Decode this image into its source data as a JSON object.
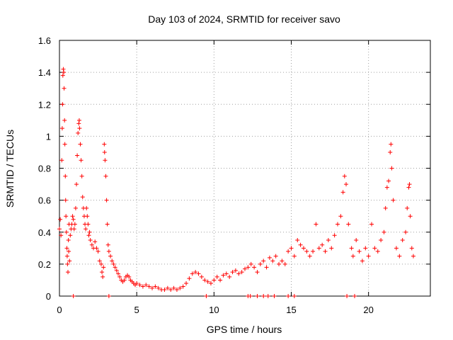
{
  "chart_data": {
    "type": "scatter",
    "title": "Day 103 of 2024, SRMTID for receiver savo",
    "xlabel": "GPS time / hours",
    "ylabel": "SRMTID / TECUs",
    "xlim": [
      0,
      24.0
    ],
    "ylim": [
      0,
      1.6
    ],
    "x_ticks": [
      0,
      5,
      10,
      15,
      20
    ],
    "y_ticks": [
      0,
      0.2,
      0.4,
      0.6,
      0.8,
      1.0,
      1.2,
      1.4,
      1.6
    ],
    "x_tick_labels": [
      "0",
      "5",
      "10",
      "15",
      "20"
    ],
    "y_tick_labels": [
      "0",
      "0.2",
      "0.4",
      "0.6",
      "0.8",
      "1",
      "1.2",
      "1.4",
      "1.6"
    ],
    "grid": true,
    "marker": "+",
    "color": "#ff0000",
    "series": [
      {
        "name": "SRMTID",
        "points": [
          [
            0.0,
            0.42
          ],
          [
            0.05,
            0.48
          ],
          [
            0.1,
            0.38
          ],
          [
            0.15,
            0.85
          ],
          [
            0.18,
            1.05
          ],
          [
            0.2,
            1.2
          ],
          [
            0.22,
            1.38
          ],
          [
            0.25,
            1.42
          ],
          [
            0.28,
            1.4
          ],
          [
            0.3,
            1.3
          ],
          [
            0.33,
            1.1
          ],
          [
            0.35,
            0.95
          ],
          [
            0.38,
            0.75
          ],
          [
            0.4,
            0.6
          ],
          [
            0.42,
            0.5
          ],
          [
            0.45,
            0.4
          ],
          [
            0.48,
            0.3
          ],
          [
            0.5,
            0.25
          ],
          [
            0.52,
            0.2
          ],
          [
            0.55,
            0.15
          ],
          [
            0.58,
            0.35
          ],
          [
            0.6,
            0.28
          ],
          [
            0.62,
            0.45
          ],
          [
            0.65,
            0.22
          ],
          [
            0.7,
            0.38
          ],
          [
            0.75,
            0.42
          ],
          [
            0.8,
            0.45
          ],
          [
            0.85,
            0.5
          ],
          [
            0.9,
            0.48
          ],
          [
            0.95,
            0.42
          ],
          [
            1.0,
            0.45
          ],
          [
            1.05,
            0.55
          ],
          [
            1.1,
            0.7
          ],
          [
            1.15,
            0.88
          ],
          [
            1.2,
            1.02
          ],
          [
            1.25,
            1.08
          ],
          [
            1.28,
            1.1
          ],
          [
            1.3,
            1.05
          ],
          [
            1.35,
            0.95
          ],
          [
            1.4,
            0.85
          ],
          [
            1.45,
            0.75
          ],
          [
            1.5,
            0.62
          ],
          [
            1.55,
            0.55
          ],
          [
            1.6,
            0.5
          ],
          [
            1.65,
            0.45
          ],
          [
            1.7,
            0.42
          ],
          [
            1.75,
            0.55
          ],
          [
            1.8,
            0.5
          ],
          [
            1.85,
            0.45
          ],
          [
            1.9,
            0.38
          ],
          [
            1.95,
            0.4
          ],
          [
            2.0,
            0.35
          ],
          [
            2.1,
            0.32
          ],
          [
            2.2,
            0.3
          ],
          [
            2.3,
            0.34
          ],
          [
            2.4,
            0.3
          ],
          [
            2.5,
            0.28
          ],
          [
            2.6,
            0.22
          ],
          [
            2.7,
            0.2
          ],
          [
            2.75,
            0.15
          ],
          [
            2.8,
            0.12
          ],
          [
            2.85,
            0.18
          ],
          [
            2.9,
            0.95
          ],
          [
            2.92,
            0.9
          ],
          [
            2.95,
            0.85
          ],
          [
            3.0,
            0.75
          ],
          [
            3.05,
            0.6
          ],
          [
            3.1,
            0.45
          ],
          [
            3.15,
            0.32
          ],
          [
            3.2,
            0.28
          ],
          [
            3.3,
            0.25
          ],
          [
            3.4,
            0.22
          ],
          [
            3.5,
            0.2
          ],
          [
            3.6,
            0.18
          ],
          [
            3.7,
            0.16
          ],
          [
            3.8,
            0.14
          ],
          [
            3.9,
            0.12
          ],
          [
            4.0,
            0.1
          ],
          [
            4.1,
            0.09
          ],
          [
            4.2,
            0.1
          ],
          [
            4.3,
            0.12
          ],
          [
            4.4,
            0.13
          ],
          [
            4.5,
            0.12
          ],
          [
            4.6,
            0.1
          ],
          [
            4.7,
            0.09
          ],
          [
            4.8,
            0.08
          ],
          [
            4.9,
            0.07
          ],
          [
            5.0,
            0.08
          ],
          [
            5.2,
            0.07
          ],
          [
            5.4,
            0.06
          ],
          [
            5.6,
            0.07
          ],
          [
            5.8,
            0.06
          ],
          [
            6.0,
            0.05
          ],
          [
            6.2,
            0.06
          ],
          [
            6.4,
            0.05
          ],
          [
            6.6,
            0.04
          ],
          [
            6.8,
            0.04
          ],
          [
            7.0,
            0.05
          ],
          [
            7.2,
            0.04
          ],
          [
            7.4,
            0.05
          ],
          [
            7.6,
            0.04
          ],
          [
            7.8,
            0.05
          ],
          [
            8.0,
            0.06
          ],
          [
            8.2,
            0.08
          ],
          [
            8.4,
            0.11
          ],
          [
            8.6,
            0.14
          ],
          [
            8.8,
            0.15
          ],
          [
            9.0,
            0.14
          ],
          [
            9.2,
            0.12
          ],
          [
            9.4,
            0.1
          ],
          [
            9.6,
            0.09
          ],
          [
            9.8,
            0.08
          ],
          [
            10.0,
            0.1
          ],
          [
            10.2,
            0.12
          ],
          [
            10.4,
            0.1
          ],
          [
            10.6,
            0.13
          ],
          [
            10.8,
            0.14
          ],
          [
            11.0,
            0.12
          ],
          [
            11.2,
            0.15
          ],
          [
            11.4,
            0.16
          ],
          [
            11.6,
            0.14
          ],
          [
            11.8,
            0.15
          ],
          [
            12.0,
            0.17
          ],
          [
            12.2,
            0.18
          ],
          [
            12.4,
            0.2
          ],
          [
            12.6,
            0.18
          ],
          [
            12.8,
            0.15
          ],
          [
            13.0,
            0.2
          ],
          [
            13.2,
            0.22
          ],
          [
            13.4,
            0.18
          ],
          [
            13.6,
            0.24
          ],
          [
            13.8,
            0.22
          ],
          [
            14.0,
            0.25
          ],
          [
            14.2,
            0.2
          ],
          [
            14.4,
            0.22
          ],
          [
            14.6,
            0.2
          ],
          [
            14.8,
            0.28
          ],
          [
            15.0,
            0.3
          ],
          [
            15.2,
            0.25
          ],
          [
            15.4,
            0.35
          ],
          [
            15.6,
            0.32
          ],
          [
            15.8,
            0.3
          ],
          [
            16.0,
            0.28
          ],
          [
            16.2,
            0.25
          ],
          [
            16.4,
            0.28
          ],
          [
            16.6,
            0.45
          ],
          [
            16.8,
            0.3
          ],
          [
            17.0,
            0.32
          ],
          [
            17.2,
            0.28
          ],
          [
            17.4,
            0.35
          ],
          [
            17.6,
            0.3
          ],
          [
            17.8,
            0.38
          ],
          [
            18.0,
            0.45
          ],
          [
            18.2,
            0.5
          ],
          [
            18.35,
            0.65
          ],
          [
            18.45,
            0.75
          ],
          [
            18.55,
            0.7
          ],
          [
            18.7,
            0.45
          ],
          [
            18.9,
            0.3
          ],
          [
            19.0,
            0.25
          ],
          [
            19.2,
            0.35
          ],
          [
            19.4,
            0.28
          ],
          [
            19.6,
            0.22
          ],
          [
            19.8,
            0.3
          ],
          [
            20.0,
            0.25
          ],
          [
            20.2,
            0.45
          ],
          [
            20.4,
            0.3
          ],
          [
            20.6,
            0.28
          ],
          [
            20.8,
            0.35
          ],
          [
            21.0,
            0.4
          ],
          [
            21.1,
            0.55
          ],
          [
            21.2,
            0.68
          ],
          [
            21.3,
            0.72
          ],
          [
            21.4,
            0.9
          ],
          [
            21.45,
            0.95
          ],
          [
            21.5,
            0.8
          ],
          [
            21.6,
            0.6
          ],
          [
            21.8,
            0.3
          ],
          [
            22.0,
            0.25
          ],
          [
            22.2,
            0.35
          ],
          [
            22.4,
            0.4
          ],
          [
            22.5,
            0.55
          ],
          [
            22.6,
            0.68
          ],
          [
            22.65,
            0.7
          ],
          [
            22.7,
            0.5
          ],
          [
            22.8,
            0.3
          ],
          [
            22.9,
            0.25
          ]
        ]
      },
      {
        "name": "Zero-value markers",
        "points": [
          [
            0.9,
            0
          ],
          [
            3.2,
            0
          ],
          [
            9.5,
            0
          ],
          [
            12.2,
            0
          ],
          [
            12.35,
            0
          ],
          [
            12.8,
            0
          ],
          [
            13.2,
            0
          ],
          [
            13.5,
            0
          ],
          [
            13.9,
            0
          ],
          [
            14.8,
            0
          ],
          [
            15.2,
            0
          ],
          [
            18.6,
            0
          ],
          [
            19.1,
            0
          ]
        ]
      }
    ]
  }
}
